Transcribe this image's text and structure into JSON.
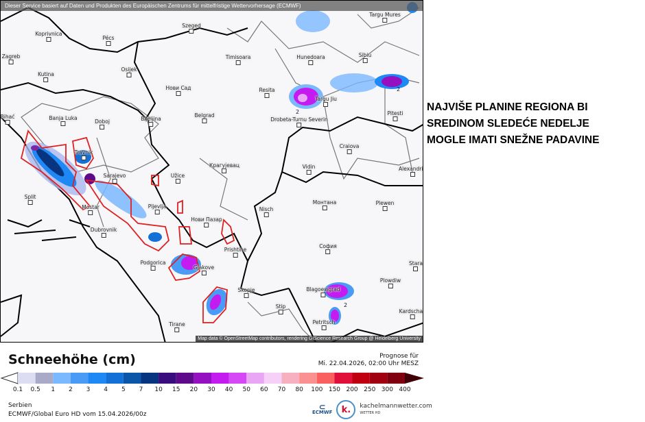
{
  "map": {
    "notice": "Dieser Service basiert auf Daten und Produkten des Europäischen Zentrums für mittelfristige Wettervorhersage (ECMWF)",
    "attribution": "Map data © OpenStreetMap contributors, rendering GIScience Research Group @ Heidelberg University",
    "contour_label": "2",
    "cities": [
      {
        "name": "Koprivnica"
      },
      {
        "name": "Pécs"
      },
      {
        "name": "Szeged"
      },
      {
        "name": "Zagreb"
      },
      {
        "name": "Kutina"
      },
      {
        "name": "Osijek"
      },
      {
        "name": "Нови Сад"
      },
      {
        "name": "Bihać"
      },
      {
        "name": "Banja Luka"
      },
      {
        "name": "Doboj"
      },
      {
        "name": "Bijeljina"
      },
      {
        "name": "Belgrad"
      },
      {
        "name": "Travnik"
      },
      {
        "name": "Sarajevo"
      },
      {
        "name": "Užice"
      },
      {
        "name": "Крагујевац"
      },
      {
        "name": "Split"
      },
      {
        "name": "Mostar"
      },
      {
        "name": "Pljevlja"
      },
      {
        "name": "Нови Пазар"
      },
      {
        "name": "Nisch"
      },
      {
        "name": "Dubrovnik"
      },
      {
        "name": "Podgorica"
      },
      {
        "name": "Gjakove"
      },
      {
        "name": "Prishtine"
      },
      {
        "name": "Skopje"
      },
      {
        "name": "Stip"
      },
      {
        "name": "Tirane"
      },
      {
        "name": "Petritsch"
      },
      {
        "name": "Timisoara"
      },
      {
        "name": "Hunedoara"
      },
      {
        "name": "Resita"
      },
      {
        "name": "Targu Jiu"
      },
      {
        "name": "Drobeta-Turnu Severin"
      },
      {
        "name": "Sibiu"
      },
      {
        "name": "Pitesti"
      },
      {
        "name": "Craiova"
      },
      {
        "name": "Vidin"
      },
      {
        "name": "Alexandria"
      },
      {
        "name": "Монтана"
      },
      {
        "name": "Plewen"
      },
      {
        "name": "София"
      },
      {
        "name": "Plowdiw"
      },
      {
        "name": "Blagoewgrad"
      },
      {
        "name": "Kardschali"
      },
      {
        "name": "Stara"
      },
      {
        "name": "Targu Mures"
      }
    ]
  },
  "headline": [
    "NAJVIŠE PLANINE REGIONA BI",
    "SREDINOM SLEDEĆE NEDELJE",
    "MOGLE IMATI SNEŽNE PADAVINE"
  ],
  "legend": {
    "title": "Schneehöhe (cm)",
    "prognose_label": "Prognose für",
    "prognose_time": "Mi. 22.04.2026, 02:00 Uhr MESZ",
    "ticks": [
      "0.1",
      "0.5",
      "1",
      "2",
      "3",
      "4",
      "5",
      "7",
      "10",
      "15",
      "20",
      "30",
      "40",
      "50",
      "60",
      "70",
      "80",
      "100",
      "150",
      "200",
      "250",
      "300",
      "400"
    ],
    "colors": [
      "#dcdcf2",
      "#a9a9c8",
      "#7ab8ff",
      "#4a9bf5",
      "#1e88f5",
      "#1270d6",
      "#0a56a8",
      "#08357f",
      "#3a0d7e",
      "#5f0a8a",
      "#9410c0",
      "#c41cf0",
      "#d648f5",
      "#e8a6f5",
      "#f6d0f6",
      "#f7b0c0",
      "#fa9090",
      "#fa6060",
      "#e0103a",
      "#c00010",
      "#a00010",
      "#800010"
    ],
    "arrow_end_color": "#400008",
    "region": "Serbien",
    "run": "ECMWF/Global Euro HD vom  15.04.2026/00z"
  },
  "logos": {
    "ecmwf": "ECMWF",
    "k": "k.",
    "kachelmann": "kachelmannwetter.com",
    "kachelmann_sub": "WETTER HD"
  }
}
